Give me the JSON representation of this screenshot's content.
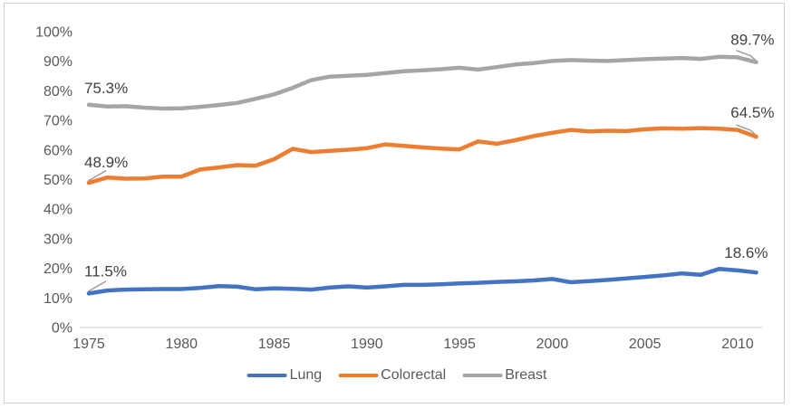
{
  "chart_data": {
    "type": "line",
    "x": [
      1975,
      1976,
      1977,
      1978,
      1979,
      1980,
      1981,
      1982,
      1983,
      1984,
      1985,
      1986,
      1987,
      1988,
      1989,
      1990,
      1991,
      1992,
      1993,
      1994,
      1995,
      1996,
      1997,
      1998,
      1999,
      2000,
      2001,
      2002,
      2003,
      2004,
      2005,
      2006,
      2007,
      2008,
      2009,
      2010,
      2011
    ],
    "series": [
      {
        "name": "Lung",
        "color": "#4472C4",
        "values": [
          11.5,
          12.5,
          12.8,
          12.9,
          13.0,
          13.0,
          13.4,
          14.0,
          13.8,
          12.9,
          13.2,
          13.1,
          12.8,
          13.5,
          13.9,
          13.5,
          13.9,
          14.4,
          14.4,
          14.6,
          14.9,
          15.1,
          15.4,
          15.6,
          15.9,
          16.4,
          15.3,
          15.7,
          16.1,
          16.6,
          17.1,
          17.6,
          18.3,
          17.8,
          19.8,
          19.3,
          18.6
        ]
      },
      {
        "name": "Colorectal",
        "color": "#ED7D31",
        "values": [
          48.9,
          50.7,
          50.3,
          50.4,
          51.0,
          51.0,
          53.4,
          54.1,
          54.9,
          54.7,
          56.9,
          60.4,
          59.3,
          59.7,
          60.1,
          60.6,
          61.9,
          61.4,
          60.9,
          60.5,
          60.2,
          62.9,
          62.1,
          63.3,
          64.7,
          65.8,
          66.8,
          66.3,
          66.5,
          66.4,
          67.0,
          67.3,
          67.2,
          67.4,
          67.2,
          66.8,
          64.5
        ]
      },
      {
        "name": "Breast",
        "color": "#A5A5A5",
        "values": [
          75.3,
          74.7,
          74.8,
          74.3,
          74.0,
          74.1,
          74.6,
          75.2,
          75.9,
          77.3,
          78.8,
          81.0,
          83.6,
          84.8,
          85.1,
          85.4,
          86.0,
          86.6,
          86.9,
          87.3,
          87.8,
          87.2,
          88.0,
          88.9,
          89.4,
          90.1,
          90.4,
          90.2,
          90.1,
          90.4,
          90.7,
          90.9,
          91.1,
          90.8,
          91.5,
          91.3,
          89.7
        ]
      }
    ],
    "y_axis": {
      "min": 0,
      "max": 100,
      "step": 10,
      "tick_labels": [
        "0%",
        "10%",
        "20%",
        "30%",
        "40%",
        "50%",
        "60%",
        "70%",
        "80%",
        "90%",
        "100%"
      ]
    },
    "x_axis": {
      "tick_labels": [
        "1975",
        "1980",
        "1985",
        "1990",
        "1995",
        "2000",
        "2005",
        "2010"
      ],
      "tick_years": [
        1975,
        1980,
        1985,
        1990,
        1995,
        2000,
        2005,
        2010
      ]
    },
    "gridlines": false,
    "legend_position": "bottom",
    "data_labels": [
      {
        "series": "Breast",
        "point": "first",
        "text": "75.3%",
        "leader": false
      },
      {
        "series": "Colorectal",
        "point": "first",
        "text": "48.9%",
        "leader": true
      },
      {
        "series": "Lung",
        "point": "first",
        "text": "11.5%",
        "leader": true
      },
      {
        "series": "Breast",
        "point": "last",
        "text": "89.7%",
        "leader": true
      },
      {
        "series": "Colorectal",
        "point": "last",
        "text": "64.5%",
        "leader": true
      },
      {
        "series": "Lung",
        "point": "last",
        "text": "18.6%",
        "leader": false
      }
    ]
  },
  "legend": {
    "items": [
      {
        "label": "Lung",
        "color": "#4472C4"
      },
      {
        "label": "Colorectal",
        "color": "#ED7D31"
      },
      {
        "label": "Breast",
        "color": "#A5A5A5"
      }
    ]
  },
  "colors": {
    "axis_line": "#d6d6d6",
    "tick_text": "#595959",
    "data_label_text": "#404040",
    "leader_line": "#9b9b9b",
    "frame_border": "#d0cece"
  }
}
